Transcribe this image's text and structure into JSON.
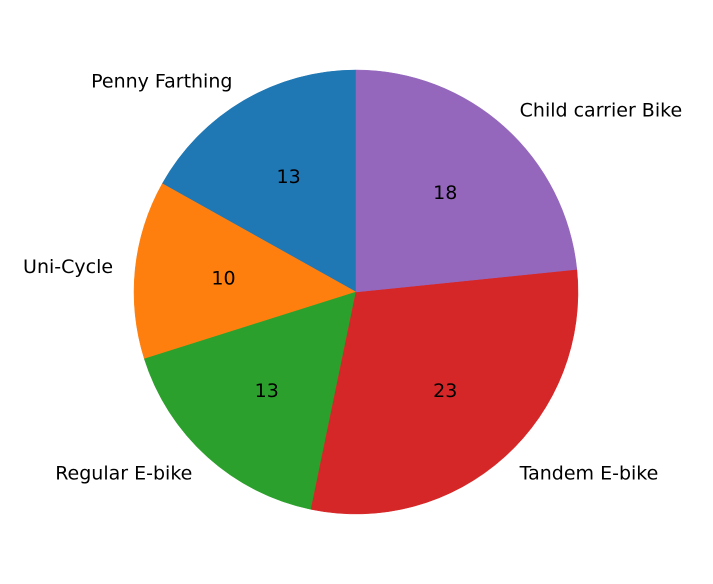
{
  "chart_data": {
    "type": "pie",
    "start_angle_deg": 90,
    "direction": "counterclockwise",
    "slices": [
      {
        "label": "Penny Farthing",
        "value": 13,
        "color": "#1f77b4"
      },
      {
        "label": "Uni-Cycle",
        "value": 10,
        "color": "#ff7f0e"
      },
      {
        "label": "Regular E-bike",
        "value": 13,
        "color": "#2ca02c"
      },
      {
        "label": "Tandem E-bike",
        "value": 23,
        "color": "#d62728"
      },
      {
        "label": "Child carrier Bike",
        "value": 18,
        "color": "#9467bd"
      }
    ]
  }
}
